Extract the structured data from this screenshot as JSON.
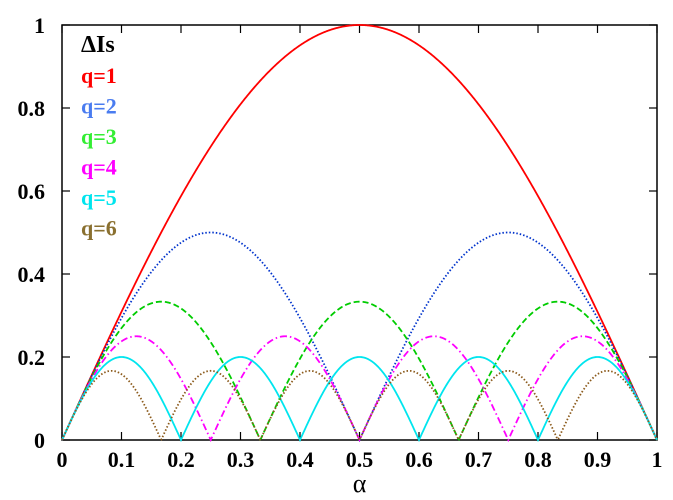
{
  "chart_data": {
    "type": "line",
    "xlabel": "α",
    "ylabel": "",
    "xlim": [
      0,
      1
    ],
    "ylim": [
      0,
      1
    ],
    "grid": false,
    "legend_title": "ΔIs",
    "legend_position": "top-left",
    "x_ticks": [
      "0",
      "0.1",
      "0.2",
      "0.3",
      "0.4",
      "0.5",
      "0.6",
      "0.7",
      "0.8",
      "0.9",
      "1"
    ],
    "y_ticks": [
      "0",
      "0.2",
      "0.4",
      "0.6",
      "0.8",
      "1"
    ],
    "formula": "|sin(q·π·α)| / q",
    "series": [
      {
        "name": "q=1",
        "q": 1,
        "color": "#ff0000",
        "style": "solid"
      },
      {
        "name": "q=2",
        "q": 2,
        "color": "#0033cc",
        "style": "dotted",
        "legend_color": "#4a7cf0"
      },
      {
        "name": "q=3",
        "q": 3,
        "color": "#00cc00",
        "style": "dashed",
        "legend_color": "#33ee33"
      },
      {
        "name": "q=4",
        "q": 4,
        "color": "#ff00ff",
        "style": "dashdot"
      },
      {
        "name": "q=5",
        "q": 5,
        "color": "#00e5ee",
        "style": "solid"
      },
      {
        "name": "q=6",
        "q": 6,
        "color": "#8b5a1b",
        "style": "dotted",
        "legend_color": "#8a7030"
      }
    ],
    "peaks": {
      "q=1": [
        [
          0.5,
          1.0
        ]
      ],
      "q=2": [
        [
          0.25,
          0.5
        ],
        [
          0.75,
          0.5
        ]
      ],
      "q=3": [
        [
          0.1667,
          0.333
        ],
        [
          0.5,
          0.333
        ],
        [
          0.8333,
          0.333
        ]
      ],
      "q=4": [
        [
          0.125,
          0.25
        ],
        [
          0.375,
          0.25
        ],
        [
          0.625,
          0.25
        ],
        [
          0.875,
          0.25
        ]
      ],
      "q=5": [
        [
          0.1,
          0.2
        ],
        [
          0.3,
          0.2
        ],
        [
          0.5,
          0.2
        ],
        [
          0.7,
          0.2
        ],
        [
          0.9,
          0.2
        ]
      ],
      "q=6": [
        [
          0.0833,
          0.1667
        ],
        [
          0.25,
          0.1667
        ],
        [
          0.4167,
          0.1667
        ],
        [
          0.5833,
          0.1667
        ],
        [
          0.75,
          0.1667
        ],
        [
          0.9167,
          0.1667
        ]
      ]
    }
  }
}
